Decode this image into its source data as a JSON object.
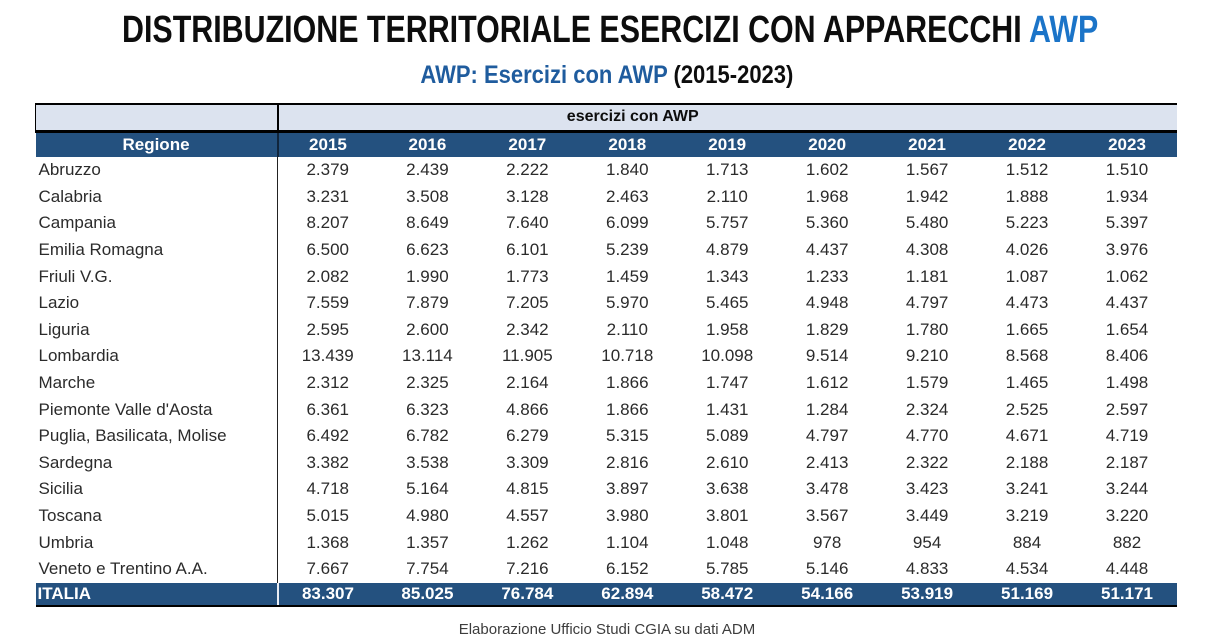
{
  "title": {
    "black": "DISTRIBUZIONE TERRITORIALE ESERCIZI CON APPARECCHI ",
    "accent": "AWP"
  },
  "subtitle": {
    "accent": "AWP: Esercizi con AWP ",
    "black": "(2015-2023)"
  },
  "footer": "Elaborazione Ufficio Studi CGIA su dati ADM",
  "colors": {
    "header_dark_blue": "#24517F",
    "header_light_blue": "#DCE3EF",
    "title_accent_blue": "#1B74C8",
    "subtitle_accent_blue": "#1F5C9E"
  },
  "chart_data": {
    "type": "table",
    "title": "DISTRIBUZIONE TERRITORIALE ESERCIZI CON APPARECCHI AWP",
    "subtitle": "AWP: Esercizi con AWP (2015-2023)",
    "group_header": "esercizi con AWP",
    "row_header": "Regione",
    "years": [
      "2015",
      "2016",
      "2017",
      "2018",
      "2019",
      "2020",
      "2021",
      "2022",
      "2023"
    ],
    "rows": [
      {
        "region": "Abruzzo",
        "values": [
          "2.379",
          "2.439",
          "2.222",
          "1.840",
          "1.713",
          "1.602",
          "1.567",
          "1.512",
          "1.510"
        ]
      },
      {
        "region": "Calabria",
        "values": [
          "3.231",
          "3.508",
          "3.128",
          "2.463",
          "2.110",
          "1.968",
          "1.942",
          "1.888",
          "1.934"
        ]
      },
      {
        "region": "Campania",
        "values": [
          "8.207",
          "8.649",
          "7.640",
          "6.099",
          "5.757",
          "5.360",
          "5.480",
          "5.223",
          "5.397"
        ]
      },
      {
        "region": "Emilia Romagna",
        "values": [
          "6.500",
          "6.623",
          "6.101",
          "5.239",
          "4.879",
          "4.437",
          "4.308",
          "4.026",
          "3.976"
        ]
      },
      {
        "region": "Friuli V.G.",
        "values": [
          "2.082",
          "1.990",
          "1.773",
          "1.459",
          "1.343",
          "1.233",
          "1.181",
          "1.087",
          "1.062"
        ]
      },
      {
        "region": "Lazio",
        "values": [
          "7.559",
          "7.879",
          "7.205",
          "5.970",
          "5.465",
          "4.948",
          "4.797",
          "4.473",
          "4.437"
        ]
      },
      {
        "region": "Liguria",
        "values": [
          "2.595",
          "2.600",
          "2.342",
          "2.110",
          "1.958",
          "1.829",
          "1.780",
          "1.665",
          "1.654"
        ]
      },
      {
        "region": "Lombardia",
        "values": [
          "13.439",
          "13.114",
          "11.905",
          "10.718",
          "10.098",
          "9.514",
          "9.210",
          "8.568",
          "8.406"
        ]
      },
      {
        "region": "Marche",
        "values": [
          "2.312",
          "2.325",
          "2.164",
          "1.866",
          "1.747",
          "1.612",
          "1.579",
          "1.465",
          "1.498"
        ]
      },
      {
        "region": "Piemonte Valle d'Aosta",
        "values": [
          "6.361",
          "6.323",
          "4.866",
          "1.866",
          "1.431",
          "1.284",
          "2.324",
          "2.525",
          "2.597"
        ]
      },
      {
        "region": "Puglia, Basilicata, Molise",
        "values": [
          "6.492",
          "6.782",
          "6.279",
          "5.315",
          "5.089",
          "4.797",
          "4.770",
          "4.671",
          "4.719"
        ]
      },
      {
        "region": "Sardegna",
        "values": [
          "3.382",
          "3.538",
          "3.309",
          "2.816",
          "2.610",
          "2.413",
          "2.322",
          "2.188",
          "2.187"
        ]
      },
      {
        "region": "Sicilia",
        "values": [
          "4.718",
          "5.164",
          "4.815",
          "3.897",
          "3.638",
          "3.478",
          "3.423",
          "3.241",
          "3.244"
        ]
      },
      {
        "region": "Toscana",
        "values": [
          "5.015",
          "4.980",
          "4.557",
          "3.980",
          "3.801",
          "3.567",
          "3.449",
          "3.219",
          "3.220"
        ]
      },
      {
        "region": "Umbria",
        "values": [
          "1.368",
          "1.357",
          "1.262",
          "1.104",
          "1.048",
          "978",
          "954",
          "884",
          "882"
        ]
      },
      {
        "region": "Veneto e Trentino A.A.",
        "values": [
          "7.667",
          "7.754",
          "7.216",
          "6.152",
          "5.785",
          "5.146",
          "4.833",
          "4.534",
          "4.448"
        ]
      }
    ],
    "total": {
      "region": "ITALIA",
      "values": [
        "83.307",
        "85.025",
        "76.784",
        "62.894",
        "58.472",
        "54.166",
        "53.919",
        "51.169",
        "51.171"
      ]
    },
    "footer": "Elaborazione Ufficio Studi CGIA su dati ADM"
  }
}
